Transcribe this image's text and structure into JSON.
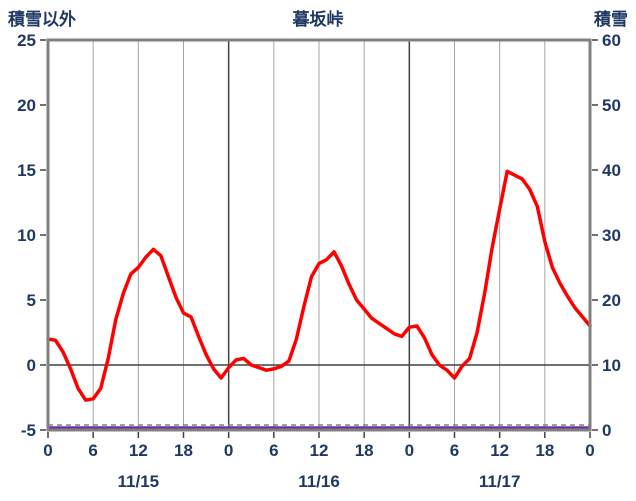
{
  "chart_data": {
    "type": "line",
    "title": "暮坂峠",
    "left_axis_label": "積雪以外",
    "right_axis_label": "積雪",
    "x_hours_range": [
      0,
      72
    ],
    "left_ylim": [
      -5,
      25
    ],
    "right_ylim": [
      0,
      60
    ],
    "left_axis_ticks": [
      "25",
      "20",
      "15",
      "10",
      "5",
      "0",
      "-5"
    ],
    "right_axis_ticks": [
      "60",
      "50",
      "40",
      "30",
      "20",
      "10",
      "0"
    ],
    "x_hour_tick_labels": [
      "0",
      "6",
      "12",
      "18",
      "0",
      "6",
      "12",
      "18",
      "0",
      "6",
      "12",
      "18",
      "0"
    ],
    "date_labels": [
      "11/15",
      "11/16",
      "11/17"
    ],
    "grid_minor_hours": [
      6,
      12,
      18,
      30,
      36,
      42,
      54,
      60,
      66
    ],
    "grid_major_hours": [
      24,
      48
    ],
    "series": [
      {
        "name": "積雪以外",
        "axis": "left",
        "color": "#FF0000",
        "x_step_hours": 1,
        "values": [
          2,
          1.9,
          1,
          -0.3,
          -1.8,
          -2.7,
          -2.6,
          -1.8,
          0.5,
          3.5,
          5.5,
          7,
          7.5,
          8.3,
          8.9,
          8.4,
          6.8,
          5.2,
          4,
          3.7,
          2.2,
          0.8,
          -0.3,
          -1,
          -0.2,
          0.4,
          0.5,
          0,
          -0.2,
          -0.4,
          -0.3,
          -0.1,
          0.3,
          2,
          4.5,
          6.8,
          7.8,
          8.1,
          8.7,
          7.6,
          6.2,
          5,
          4.3,
          3.6,
          3.2,
          2.8,
          2.4,
          2.2,
          2.9,
          3,
          2.1,
          0.8,
          0,
          -0.4,
          -1,
          -0.1,
          0.5,
          2.5,
          5.5,
          9,
          12,
          14.9,
          14.6,
          14.3,
          13.5,
          12.2,
          9.5,
          7.5,
          6.3,
          5.3,
          4.4,
          3.7,
          3
        ]
      },
      {
        "name": "積雪",
        "axis": "right",
        "color": "#7030A0",
        "x_step_hours": 1,
        "values": [
          0,
          0,
          0,
          0,
          0,
          0,
          0,
          0,
          0,
          0,
          0,
          0,
          0,
          0,
          0,
          0,
          0,
          0,
          0,
          0,
          0,
          0,
          0,
          0,
          0,
          0,
          0,
          0,
          0,
          0,
          0,
          0,
          0,
          0,
          0,
          0,
          0,
          0,
          0,
          0,
          0,
          0,
          0,
          0,
          0,
          0,
          0,
          0,
          0,
          0,
          0,
          0,
          0,
          0,
          0,
          0,
          0,
          0,
          0,
          0,
          0,
          0,
          0,
          0,
          0,
          0,
          0,
          0,
          0,
          0,
          0,
          0,
          0
        ]
      }
    ]
  },
  "colors": {
    "text": "#1F3864",
    "frame": "#808080",
    "grid_minor": "#A6A6A6",
    "grid_major": "#404040",
    "dashed_zero_line": "#808080",
    "temp_line": "#FF0000",
    "snow_line": "#7030A0"
  }
}
